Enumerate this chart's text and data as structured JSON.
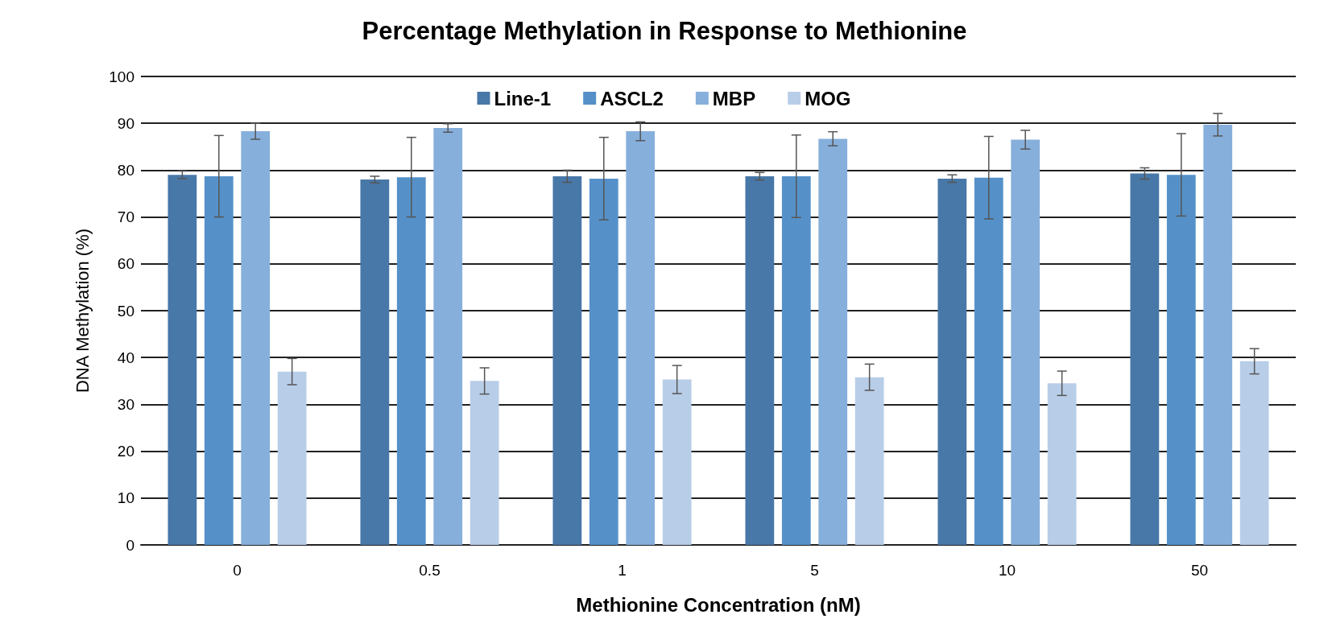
{
  "chart_data": {
    "type": "bar",
    "title": "Percentage Methylation in Response to Methionine",
    "xlabel": "Methionine Concentration (nM)",
    "ylabel": "DNA Methylation (%)",
    "categories": [
      "0",
      "0.5",
      "1",
      "5",
      "10",
      "50"
    ],
    "series": [
      {
        "name": "Line-1",
        "color": "#4878a8",
        "values": [
          79,
          78,
          78.7,
          78.7,
          78.2,
          79.3
        ],
        "errors": [
          0.8,
          0.7,
          1.3,
          0.8,
          0.8,
          1.2
        ]
      },
      {
        "name": "ASCL2",
        "color": "#5591c8",
        "values": [
          78.7,
          78.5,
          78.2,
          78.7,
          78.4,
          79
        ],
        "errors": [
          8.7,
          8.5,
          8.8,
          8.8,
          8.8,
          8.8
        ]
      },
      {
        "name": "MBP",
        "color": "#86afdc",
        "values": [
          88.3,
          89,
          88.3,
          86.7,
          86.5,
          89.7
        ],
        "errors": [
          1.7,
          0.9,
          2,
          1.5,
          2,
          2.4
        ]
      },
      {
        "name": "MOG",
        "color": "#b8cde8",
        "values": [
          37,
          35,
          35.3,
          35.8,
          34.5,
          39.2
        ],
        "errors": [
          2.8,
          2.8,
          3,
          2.8,
          2.6,
          2.7
        ]
      }
    ],
    "ylim": [
      0,
      100
    ],
    "yticks": [
      0,
      10,
      20,
      30,
      40,
      50,
      60,
      70,
      80,
      90,
      100
    ],
    "grid": "y",
    "legend": "top"
  }
}
